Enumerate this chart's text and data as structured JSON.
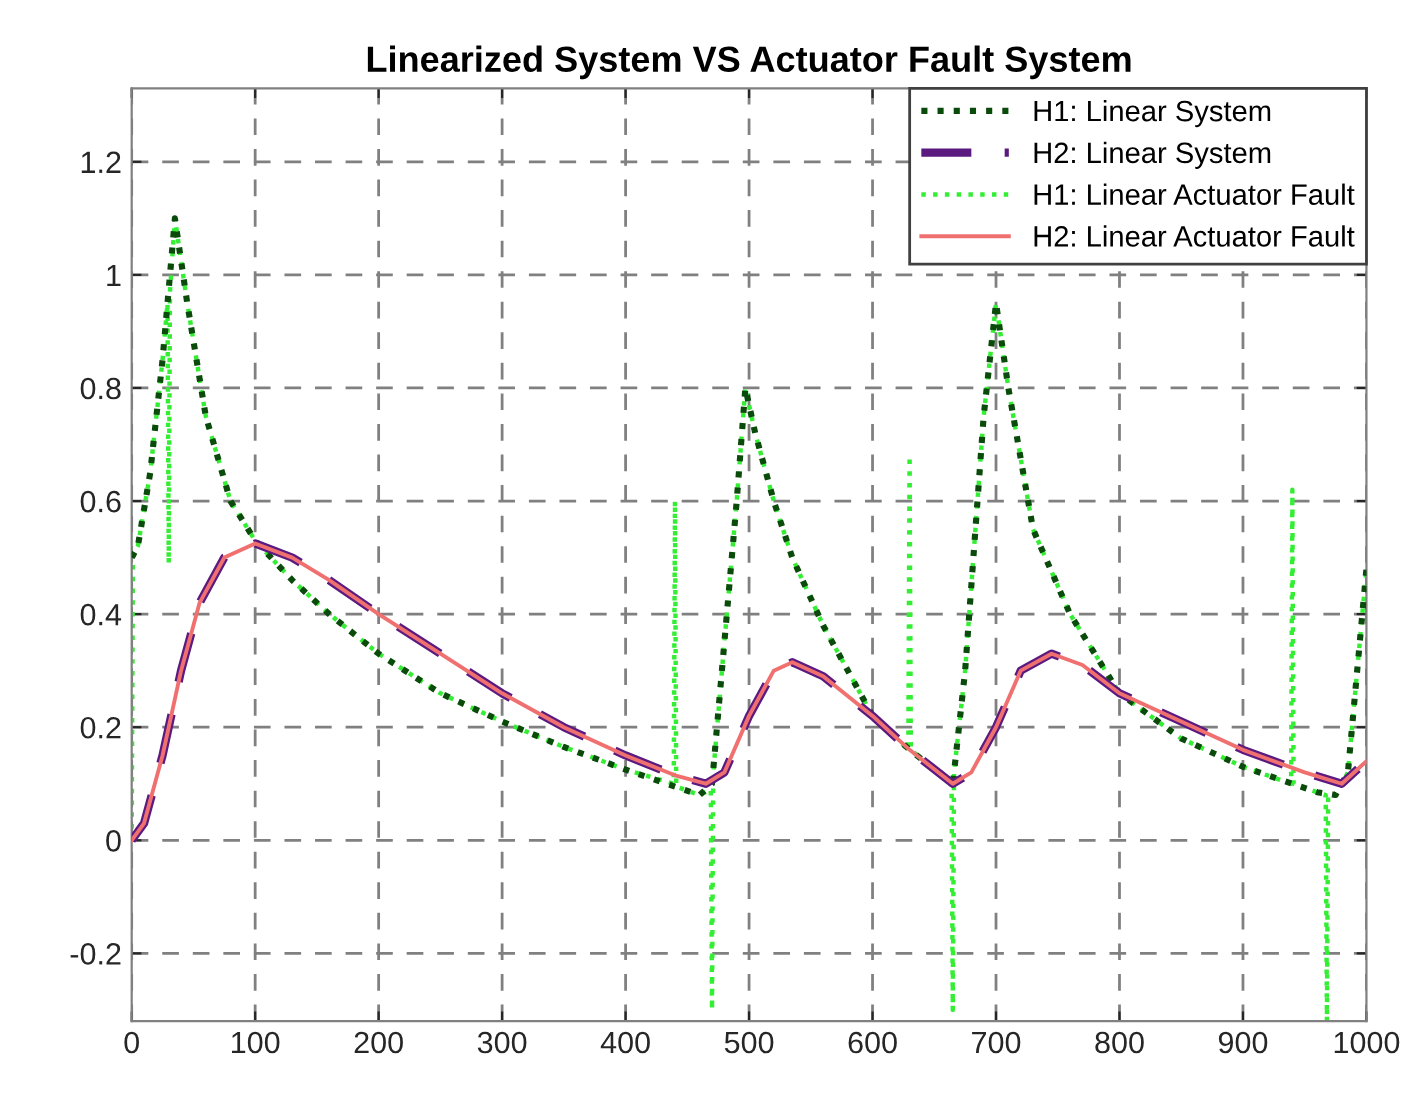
{
  "chart_data": {
    "type": "line",
    "title": "Linearized System VS Actuator Fault System",
    "xlim": [
      0,
      1000
    ],
    "xticks": [
      0,
      100,
      200,
      300,
      400,
      500,
      600,
      700,
      800,
      900,
      1000
    ],
    "ylim": [
      -0.32,
      1.33
    ],
    "yticks": [
      -0.2,
      0,
      0.2,
      0.4,
      0.6,
      0.8,
      1,
      1.2
    ],
    "grid": true,
    "legend": "top right",
    "series": [
      {
        "name": "H1: Linear System",
        "color": "#0a4a0a",
        "line_style": "dotted",
        "x": [
          0,
          5,
          15,
          25,
          35,
          45,
          60,
          80,
          100,
          130,
          160,
          200,
          250,
          300,
          350,
          400,
          440,
          460,
          470,
          480,
          490,
          497,
          505,
          520,
          535,
          560,
          600,
          630,
          665,
          675,
          690,
          700,
          710,
          730,
          760,
          800,
          850,
          900,
          940,
          960,
          975,
          985,
          1000
        ],
        "values": [
          0.5,
          0.52,
          0.65,
          0.85,
          1.1,
          0.95,
          0.75,
          0.6,
          0.53,
          0.46,
          0.4,
          0.33,
          0.26,
          0.21,
          0.165,
          0.125,
          0.095,
          0.08,
          0.1,
          0.35,
          0.6,
          0.8,
          0.72,
          0.6,
          0.5,
          0.38,
          0.22,
          0.16,
          0.1,
          0.3,
          0.75,
          0.95,
          0.8,
          0.55,
          0.4,
          0.26,
          0.18,
          0.13,
          0.1,
          0.085,
          0.08,
          0.12,
          0.48
        ]
      },
      {
        "name": "H2: Linear System",
        "color": "#5b1a80",
        "line_style": "dashed",
        "x": [
          0,
          10,
          25,
          40,
          55,
          75,
          100,
          130,
          160,
          200,
          250,
          300,
          350,
          400,
          440,
          465,
          480,
          500,
          520,
          535,
          560,
          600,
          630,
          665,
          680,
          700,
          720,
          745,
          770,
          800,
          850,
          900,
          950,
          980,
          1000
        ],
        "values": [
          0,
          0.03,
          0.15,
          0.3,
          0.42,
          0.5,
          0.525,
          0.5,
          0.46,
          0.4,
          0.33,
          0.26,
          0.2,
          0.15,
          0.115,
          0.1,
          0.12,
          0.22,
          0.3,
          0.315,
          0.29,
          0.22,
          0.16,
          0.1,
          0.12,
          0.2,
          0.3,
          0.33,
          0.31,
          0.26,
          0.21,
          0.16,
          0.12,
          0.1,
          0.14
        ]
      },
      {
        "name": "H1: Linear Actuator Fault",
        "color": "#33ee33",
        "line_style": "dotted",
        "x": [
          0,
          1,
          5,
          15,
          25,
          29,
          30,
          31,
          35,
          45,
          60,
          80,
          100,
          130,
          160,
          200,
          250,
          300,
          350,
          400,
          439,
          440,
          441,
          460,
          469,
          470,
          471,
          480,
          490,
          497,
          505,
          520,
          535,
          560,
          600,
          629,
          630,
          631,
          664,
          665,
          666,
          675,
          690,
          700,
          710,
          730,
          760,
          800,
          850,
          900,
          939,
          940,
          941,
          960,
          967,
          968,
          969,
          975,
          985,
          1000
        ],
        "values": [
          0,
          0.5,
          0.52,
          0.65,
          0.85,
          0.95,
          0.49,
          0.97,
          1.1,
          0.95,
          0.75,
          0.6,
          0.53,
          0.46,
          0.4,
          0.33,
          0.26,
          0.21,
          0.165,
          0.125,
          0.1,
          0.6,
          0.095,
          0.08,
          0.09,
          -0.3,
          0.12,
          0.35,
          0.6,
          0.8,
          0.72,
          0.6,
          0.5,
          0.38,
          0.22,
          0.16,
          0.68,
          0.16,
          0.1,
          -0.3,
          0.12,
          0.3,
          0.75,
          0.95,
          0.8,
          0.55,
          0.4,
          0.26,
          0.18,
          0.13,
          0.1,
          0.62,
          0.1,
          0.085,
          0.08,
          -0.32,
          0.08,
          0.08,
          0.12,
          0.48
        ]
      },
      {
        "name": "H2: Linear Actuator Fault",
        "color": "#f07070",
        "line_style": "solid",
        "x": [
          0,
          10,
          25,
          40,
          55,
          75,
          100,
          130,
          160,
          200,
          250,
          300,
          350,
          400,
          440,
          465,
          480,
          500,
          520,
          535,
          560,
          600,
          630,
          665,
          680,
          700,
          720,
          745,
          770,
          800,
          850,
          900,
          950,
          980,
          1000
        ],
        "values": [
          0,
          0.03,
          0.15,
          0.3,
          0.42,
          0.5,
          0.525,
          0.5,
          0.46,
          0.4,
          0.33,
          0.26,
          0.2,
          0.15,
          0.115,
          0.1,
          0.12,
          0.22,
          0.3,
          0.315,
          0.29,
          0.22,
          0.16,
          0.1,
          0.12,
          0.2,
          0.3,
          0.33,
          0.31,
          0.26,
          0.21,
          0.16,
          0.12,
          0.1,
          0.14
        ]
      }
    ]
  }
}
